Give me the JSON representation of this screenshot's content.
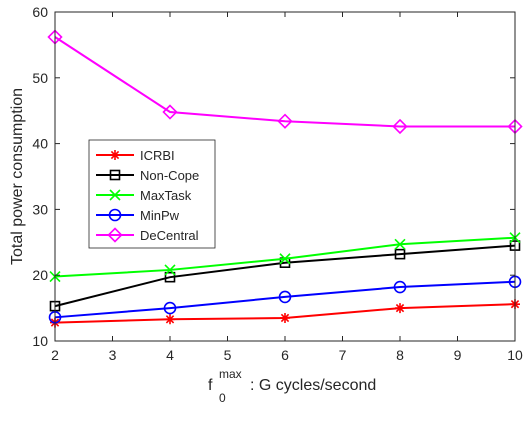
{
  "chart_data": {
    "type": "line",
    "title": "",
    "xlabel": {
      "symbol": "f",
      "superscript": "max",
      "subscript": "0",
      "suffix": ": G cycles/second"
    },
    "ylabel": "Total power consumption",
    "xlim": [
      2,
      10
    ],
    "ylim": [
      10,
      60
    ],
    "xticks": [
      2,
      3,
      4,
      5,
      6,
      7,
      8,
      9,
      10
    ],
    "yticks": [
      10,
      20,
      30,
      40,
      50,
      60
    ],
    "grid": false,
    "legend_position": "center-left",
    "x": [
      2,
      4,
      6,
      8,
      10
    ],
    "series": [
      {
        "name": "ICRBI",
        "color": "#ff0000",
        "marker": "asterisk",
        "values": [
          12.8,
          13.3,
          13.5,
          15.0,
          15.6
        ]
      },
      {
        "name": "Non-Cope",
        "color": "#000000",
        "marker": "square",
        "values": [
          15.3,
          19.7,
          21.9,
          23.2,
          24.5
        ]
      },
      {
        "name": "MaxTask",
        "color": "#00ff00",
        "marker": "x",
        "values": [
          19.8,
          20.8,
          22.5,
          24.7,
          25.7
        ]
      },
      {
        "name": "MinPw",
        "color": "#0000ff",
        "marker": "circle",
        "values": [
          13.6,
          15.0,
          16.7,
          18.2,
          19.0
        ]
      },
      {
        "name": "DeCentral",
        "color": "#ff00ff",
        "marker": "diamond",
        "values": [
          56.2,
          44.8,
          43.4,
          42.6,
          42.6
        ]
      }
    ]
  }
}
